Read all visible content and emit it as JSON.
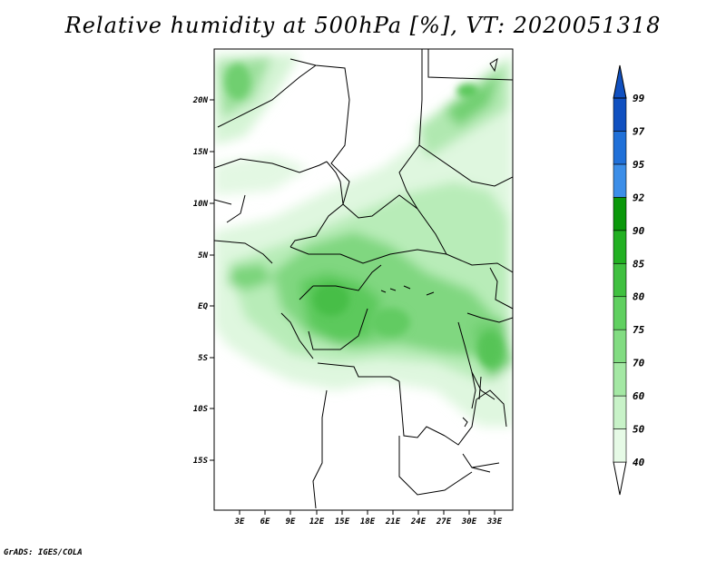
{
  "title": "Relative humidity at 500hPa [%], VT: 2020051318",
  "footer": "GrADS: IGES/COLA",
  "map": {
    "lat_ticks": [
      "20N",
      "15N",
      "10N",
      "5N",
      "EQ",
      "5S",
      "10S",
      "15S"
    ],
    "lon_ticks": [
      "3E",
      "6E",
      "9E",
      "12E",
      "15E",
      "18E",
      "21E",
      "24E",
      "27E",
      "30E",
      "33E"
    ]
  },
  "colorbar": {
    "labels": [
      "40",
      "50",
      "60",
      "70",
      "75",
      "80",
      "85",
      "90",
      "92",
      "95",
      "97",
      "99"
    ],
    "colors": [
      "#ffffff",
      "#e6fae6",
      "#c8f2c8",
      "#a4e8a4",
      "#82dc82",
      "#60d060",
      "#40c040",
      "#22b022",
      "#0a980a",
      "#3c8ee8",
      "#2070d8",
      "#1050c0"
    ]
  }
}
